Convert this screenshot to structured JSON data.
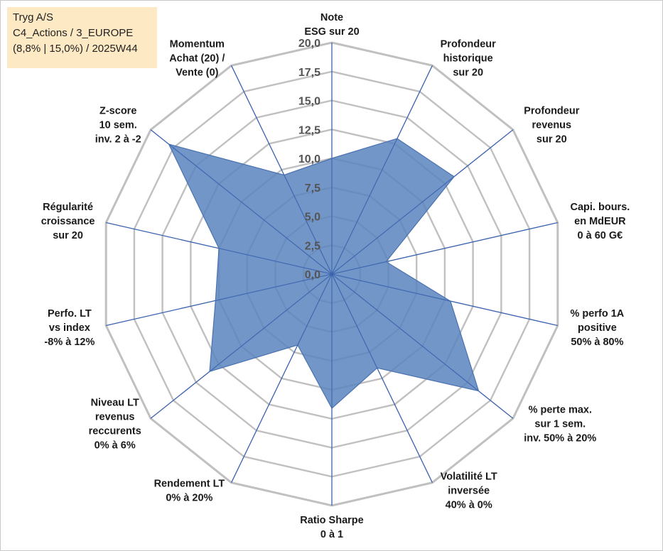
{
  "info_box": {
    "line1": "Tryg A/S",
    "line2": "C4_Actions / 3_EUROPE",
    "line3": "(8,8% | 15,0%) / 2025W44"
  },
  "colors": {
    "grid": "#c0c0c0",
    "spoke": "#3a62ad",
    "fill": "#5b84be",
    "stroke": "#4a72b0"
  },
  "chart_data": {
    "type": "radar",
    "title": "",
    "r_range": [
      0,
      20
    ],
    "r_ticks": [
      "0,0",
      "2,5",
      "5,0",
      "7,5",
      "10,0",
      "12,5",
      "15,0",
      "17,5",
      "20,0"
    ],
    "axes": [
      {
        "label": [
          "Note",
          "ESG sur 20"
        ],
        "value": 10.0
      },
      {
        "label": [
          "Profondeur",
          "historique",
          "sur 20"
        ],
        "value": 13.0
      },
      {
        "label": [
          "Profondeur",
          "revenus",
          "sur 20"
        ],
        "value": 13.5
      },
      {
        "label": [
          "Capi. bours.",
          "en MdEUR",
          "0 à 60 G€"
        ],
        "value": 4.8
      },
      {
        "label": [
          "% perfo 1A",
          "positive",
          "50% à 80%"
        ],
        "value": 10.5
      },
      {
        "label": [
          "% perte max.",
          "sur 1 sem.",
          "inv. 50% à 20%"
        ],
        "value": 16.2
      },
      {
        "label": [
          "Volatilité LT",
          "inversée",
          "40% à 0%"
        ],
        "value": 9.0
      },
      {
        "label": [
          "Ratio Sharpe",
          "0 à 1"
        ],
        "value": 11.6
      },
      {
        "label": [
          "Rendement LT",
          "0% à 20%"
        ],
        "value": 6.8
      },
      {
        "label": [
          "Niveau LT",
          "revenus",
          "reccurents",
          "0% à 6%"
        ],
        "value": 13.5
      },
      {
        "label": [
          "Perfo. LT",
          "vs index",
          "-8% à 12%"
        ],
        "value": 10.3
      },
      {
        "label": [
          "Régularité",
          "croissance",
          "sur 20"
        ],
        "value": 10.0
      },
      {
        "label": [
          "Z-score",
          "10 sem.",
          "inv. 2 à -2"
        ],
        "value": 18.0
      },
      {
        "label": [
          "Momentum",
          "Achat (20) /",
          "Vente (0)"
        ],
        "value": 9.5
      }
    ]
  }
}
